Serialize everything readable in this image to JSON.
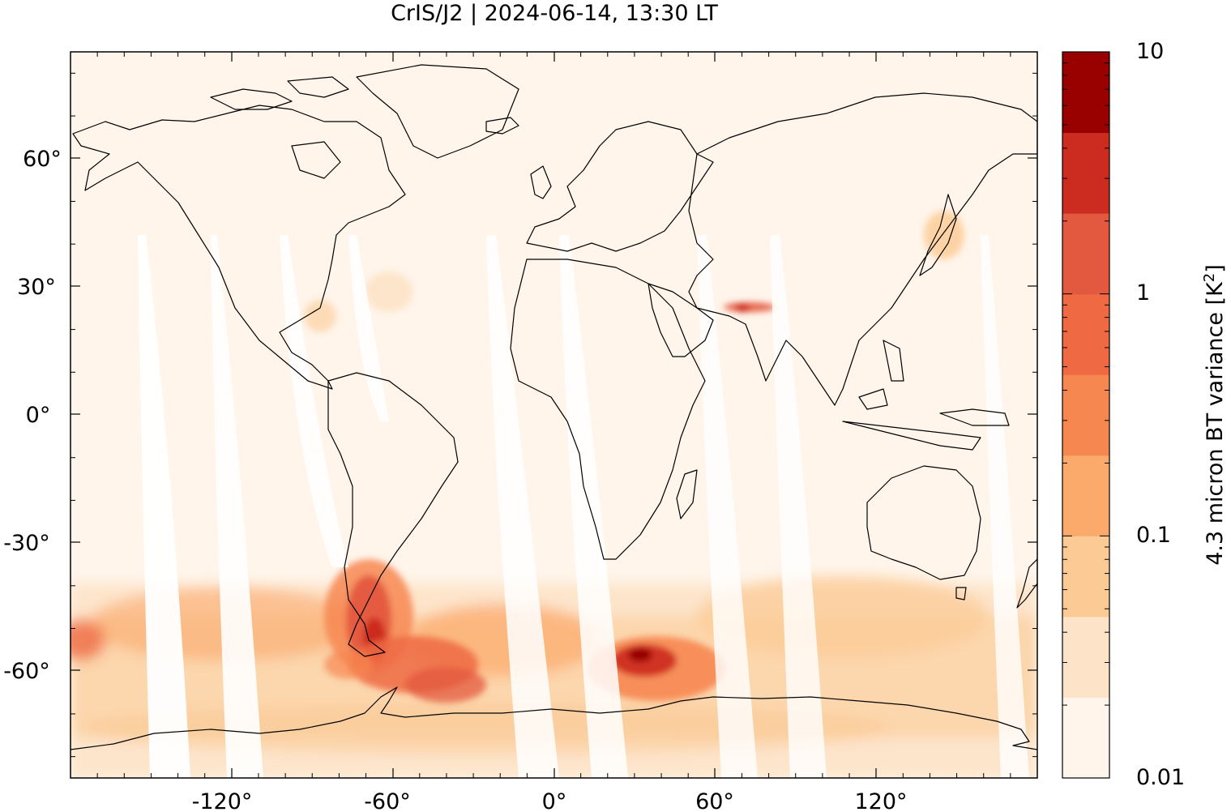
{
  "title": "CrIS/J2 | 2024-06-14, 13:30 LT",
  "map": {
    "projection": "equirectangular",
    "lon_range": [
      -180,
      180
    ],
    "lat_range": [
      -85,
      85
    ],
    "background_color": "#fff5eb",
    "coastline_color": "#000000",
    "lat_ticks": [
      {
        "value": 60,
        "label": "60°"
      },
      {
        "value": 30,
        "label": "30°"
      },
      {
        "value": 0,
        "label": "0°"
      },
      {
        "value": -30,
        "label": "-30°"
      },
      {
        "value": -60,
        "label": "-60°"
      }
    ],
    "lon_ticks": [
      {
        "value": -120,
        "label": "-120°"
      },
      {
        "value": -60,
        "label": "-60°"
      },
      {
        "value": 0,
        "label": "0°"
      },
      {
        "value": 60,
        "label": "60°"
      },
      {
        "value": 120,
        "label": "120°"
      }
    ]
  },
  "colorbar": {
    "label": "4.3 micron BT variance [K",
    "label_superscript": "2",
    "label_suffix": "]",
    "scale": "log",
    "range": [
      0.01,
      10
    ],
    "colors": [
      "#fff5eb",
      "#fee6ce",
      "#fdd0a2",
      "#fdae6b",
      "#fd8d3c",
      "#f16913",
      "#d94801",
      "#a63603",
      "#7f2704"
    ],
    "display_colors": [
      "#fff5eb",
      "#fde3c8",
      "#fcca94",
      "#fcaa6c",
      "#f78751",
      "#ef6a43",
      "#e3593f",
      "#cc2b1f",
      "#990000"
    ],
    "ticks": [
      {
        "value": 10,
        "label": "10"
      },
      {
        "value": 1,
        "label": "1"
      },
      {
        "value": 0.1,
        "label": "0.1"
      },
      {
        "value": 0.01,
        "label": "0.01"
      }
    ]
  },
  "variance_patches": [
    {
      "name": "patagonia-hotspot",
      "lon": -67,
      "lat": -51,
      "level": 4.5
    },
    {
      "name": "drake-passage",
      "lon": -58,
      "lat": -58,
      "level": 2.5
    },
    {
      "name": "south-atlantic",
      "lon": -45,
      "lat": -60,
      "level": 1.2
    },
    {
      "name": "south-indian-hotspot",
      "lon": 35,
      "lat": -57,
      "level": 3.5
    },
    {
      "name": "south-indian-east",
      "lon": 50,
      "lat": -60,
      "level": 1.0
    },
    {
      "name": "southern-pacific",
      "lon": -130,
      "lat": -55,
      "level": 0.3
    },
    {
      "name": "southern-ocean-east",
      "lon": 120,
      "lat": -55,
      "level": 0.25
    },
    {
      "name": "northern-india-streak",
      "lon": 70,
      "lat": 25,
      "level": 1.5
    }
  ]
}
